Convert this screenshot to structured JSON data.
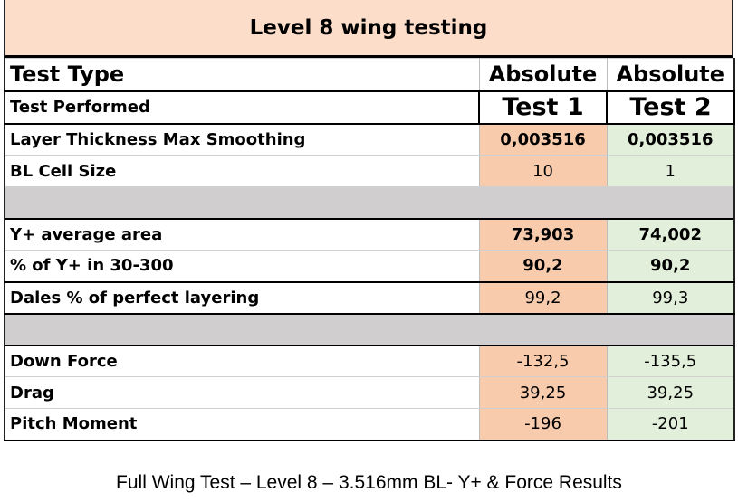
{
  "title": "Level 8 wing testing",
  "header": {
    "test_type_label": "Test Type",
    "test_type_values": [
      "Absolute",
      "Absolute"
    ],
    "test_performed_label": "Test Performed",
    "test_performed_values": [
      "Test 1",
      "Test 2"
    ]
  },
  "rows": {
    "layer_thickness": {
      "label": "Layer Thickness Max Smoothing",
      "test1": "0,003516",
      "test2": "0,003516"
    },
    "bl_cell_size": {
      "label": "BL Cell Size",
      "test1": "10",
      "test2": "1"
    },
    "y_plus_avg": {
      "label": "Y+ average area",
      "test1": "73,903",
      "test2": "74,002"
    },
    "y_plus_pct": {
      "label": "% of Y+ in 30-300",
      "test1": "90,2",
      "test2": "90,2"
    },
    "dales_pct": {
      "label": "Dales % of perfect layering",
      "test1": "99,2",
      "test2": "99,3"
    },
    "down_force": {
      "label": "Down Force",
      "test1": "-132,5",
      "test2": "-135,5"
    },
    "drag": {
      "label": "Drag",
      "test1": "39,25",
      "test2": "39,25"
    },
    "pitch_moment": {
      "label": "Pitch Moment",
      "test1": "-196",
      "test2": "-201"
    }
  },
  "colors": {
    "title_bg": "#fbddc9",
    "test1_bg": "#f8cbad",
    "test2_bg": "#e2efda",
    "separator_bg": "#d0cece"
  },
  "caption": "Full Wing Test – Level 8 – 3.516mm BL- Y+ & Force Results"
}
